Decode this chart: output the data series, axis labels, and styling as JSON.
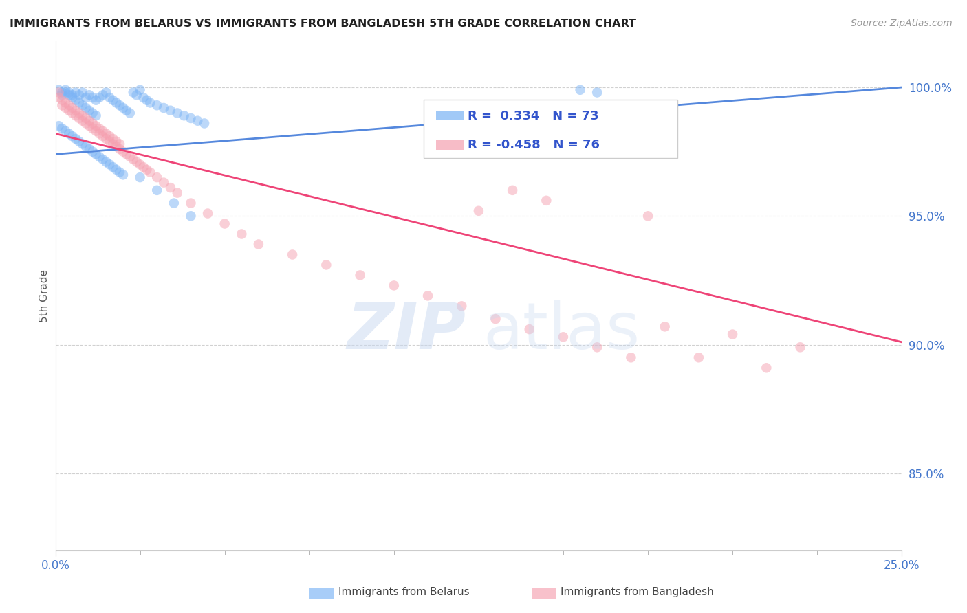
{
  "title": "IMMIGRANTS FROM BELARUS VS IMMIGRANTS FROM BANGLADESH 5TH GRADE CORRELATION CHART",
  "source": "Source: ZipAtlas.com",
  "ylabel": "5th Grade",
  "xlim": [
    0.0,
    0.25
  ],
  "ylim": [
    0.82,
    1.018
  ],
  "yticks": [
    0.85,
    0.9,
    0.95,
    1.0
  ],
  "ytick_labels": [
    "85.0%",
    "90.0%",
    "95.0%",
    "100.0%"
  ],
  "grid_color": "#cccccc",
  "background_color": "#ffffff",
  "belarus_color": "#7ab3f5",
  "bangladesh_color": "#f5a0b0",
  "belarus_line_color": "#5588dd",
  "bangladesh_line_color": "#ee4477",
  "legend_R_belarus": "0.334",
  "legend_N_belarus": "73",
  "legend_R_bangladesh": "-0.458",
  "legend_N_bangladesh": "76",
  "belarus_line_x": [
    0.0,
    0.25
  ],
  "belarus_line_y": [
    0.974,
    1.0
  ],
  "bangladesh_line_x": [
    0.0,
    0.25
  ],
  "bangladesh_line_y": [
    0.982,
    0.901
  ],
  "belarus_x": [
    0.001,
    0.002,
    0.002,
    0.003,
    0.003,
    0.004,
    0.004,
    0.005,
    0.005,
    0.006,
    0.006,
    0.007,
    0.007,
    0.008,
    0.008,
    0.009,
    0.009,
    0.01,
    0.01,
    0.011,
    0.011,
    0.012,
    0.012,
    0.013,
    0.014,
    0.015,
    0.016,
    0.017,
    0.018,
    0.019,
    0.02,
    0.021,
    0.022,
    0.023,
    0.024,
    0.025,
    0.026,
    0.027,
    0.028,
    0.03,
    0.032,
    0.034,
    0.036,
    0.038,
    0.04,
    0.042,
    0.044,
    0.001,
    0.002,
    0.003,
    0.004,
    0.005,
    0.006,
    0.007,
    0.008,
    0.009,
    0.01,
    0.011,
    0.012,
    0.013,
    0.014,
    0.015,
    0.016,
    0.017,
    0.018,
    0.019,
    0.02,
    0.025,
    0.03,
    0.035,
    0.04,
    0.155,
    0.16
  ],
  "belarus_y": [
    0.999,
    0.998,
    0.997,
    0.999,
    0.998,
    0.998,
    0.997,
    0.997,
    0.996,
    0.998,
    0.995,
    0.997,
    0.994,
    0.998,
    0.993,
    0.996,
    0.992,
    0.997,
    0.991,
    0.996,
    0.99,
    0.995,
    0.989,
    0.996,
    0.997,
    0.998,
    0.996,
    0.995,
    0.994,
    0.993,
    0.992,
    0.991,
    0.99,
    0.998,
    0.997,
    0.999,
    0.996,
    0.995,
    0.994,
    0.993,
    0.992,
    0.991,
    0.99,
    0.989,
    0.988,
    0.987,
    0.986,
    0.985,
    0.984,
    0.983,
    0.982,
    0.981,
    0.98,
    0.979,
    0.978,
    0.977,
    0.976,
    0.975,
    0.974,
    0.973,
    0.972,
    0.971,
    0.97,
    0.969,
    0.968,
    0.967,
    0.966,
    0.965,
    0.96,
    0.955,
    0.95,
    0.999,
    0.998
  ],
  "bangladesh_x": [
    0.001,
    0.001,
    0.002,
    0.002,
    0.003,
    0.003,
    0.004,
    0.004,
    0.005,
    0.005,
    0.006,
    0.006,
    0.007,
    0.007,
    0.008,
    0.008,
    0.009,
    0.009,
    0.01,
    0.01,
    0.011,
    0.011,
    0.012,
    0.012,
    0.013,
    0.013,
    0.014,
    0.014,
    0.015,
    0.015,
    0.016,
    0.016,
    0.017,
    0.017,
    0.018,
    0.018,
    0.019,
    0.019,
    0.02,
    0.021,
    0.022,
    0.023,
    0.024,
    0.025,
    0.026,
    0.027,
    0.028,
    0.03,
    0.032,
    0.034,
    0.036,
    0.04,
    0.045,
    0.05,
    0.055,
    0.06,
    0.07,
    0.08,
    0.09,
    0.1,
    0.11,
    0.12,
    0.13,
    0.14,
    0.15,
    0.16,
    0.17,
    0.18,
    0.19,
    0.2,
    0.21,
    0.22,
    0.125,
    0.135,
    0.145,
    0.175
  ],
  "bangladesh_y": [
    0.998,
    0.996,
    0.995,
    0.993,
    0.994,
    0.992,
    0.993,
    0.991,
    0.992,
    0.99,
    0.991,
    0.989,
    0.99,
    0.988,
    0.989,
    0.987,
    0.988,
    0.986,
    0.987,
    0.985,
    0.986,
    0.984,
    0.985,
    0.983,
    0.984,
    0.982,
    0.983,
    0.981,
    0.982,
    0.98,
    0.981,
    0.979,
    0.98,
    0.978,
    0.979,
    0.977,
    0.978,
    0.976,
    0.975,
    0.974,
    0.973,
    0.972,
    0.971,
    0.97,
    0.969,
    0.968,
    0.967,
    0.965,
    0.963,
    0.961,
    0.959,
    0.955,
    0.951,
    0.947,
    0.943,
    0.939,
    0.935,
    0.931,
    0.927,
    0.923,
    0.919,
    0.915,
    0.91,
    0.906,
    0.903,
    0.899,
    0.895,
    0.907,
    0.895,
    0.904,
    0.891,
    0.899,
    0.952,
    0.96,
    0.956,
    0.95
  ]
}
